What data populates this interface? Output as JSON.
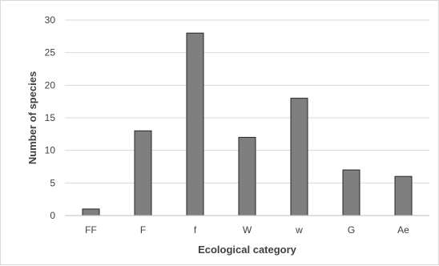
{
  "chart_data": {
    "type": "bar",
    "title": "",
    "xlabel": "Ecological  category",
    "ylabel": "Number of species",
    "categories": [
      "FF",
      "F",
      "f",
      "W",
      "w",
      "G",
      "Ae"
    ],
    "values": [
      1,
      13,
      28,
      12,
      18,
      7,
      6
    ],
    "ylim": [
      0,
      30
    ],
    "yticks": [
      0,
      5,
      10,
      15,
      20,
      25,
      30
    ],
    "grid": true,
    "legend": "none",
    "colors": {
      "bar_fill": "#7f7f7f",
      "bar_stroke": "#262626",
      "grid": "#d9d9d9",
      "axis": "#bfbfbf"
    }
  }
}
